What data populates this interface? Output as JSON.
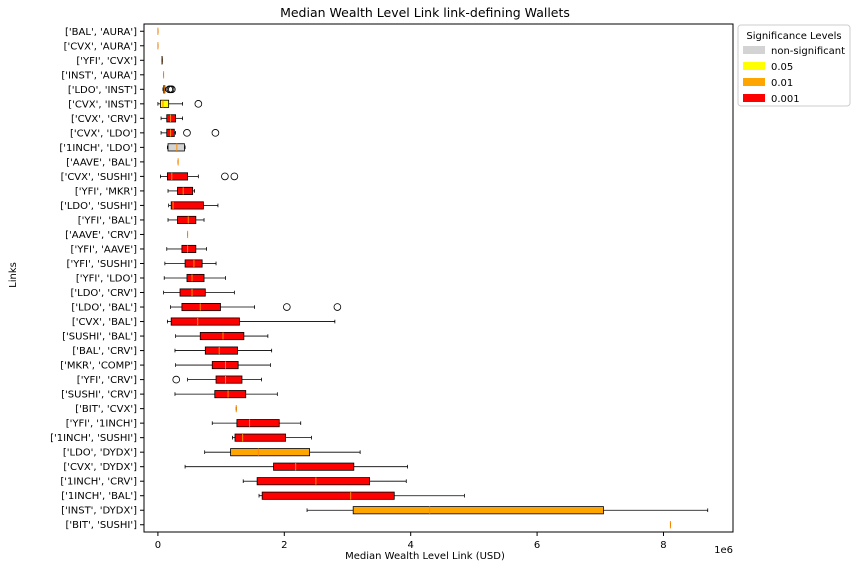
{
  "chart_data": {
    "type": "boxplot",
    "title": "Median Wealth Level Link link-defining Wallets",
    "xlabel": "Median Wealth Level Link (USD)",
    "ylabel": "Links",
    "x_scale_label": "1e6",
    "x_ticks": [
      0,
      2,
      4,
      6,
      8
    ],
    "xlim": [
      -0.22,
      9.1
    ],
    "legend": {
      "title": "Significance Levels",
      "position": "outside-top-right",
      "entries": [
        {
          "label": "non-significant",
          "color": "#d3d3d3"
        },
        {
          "label": "0.05",
          "color": "#ffff00"
        },
        {
          "label": "0.01",
          "color": "#ffa500"
        },
        {
          "label": "0.001",
          "color": "#ff0000"
        }
      ]
    },
    "boxes": [
      {
        "label": "['BAL', 'AURA']",
        "level": "0.01",
        "min": 0.0,
        "q1": 0.0,
        "median": 0.0,
        "q3": 0.0,
        "max": 0.0,
        "outliers": []
      },
      {
        "label": "['CVX', 'AURA']",
        "level": "0.01",
        "min": 0.0,
        "q1": 0.0,
        "median": 0.0,
        "q3": 0.0,
        "max": 0.0,
        "outliers": []
      },
      {
        "label": "['YFI', 'CVX']",
        "level": "0.01",
        "min": 0.06,
        "q1": 0.06,
        "median": 0.06,
        "q3": 0.07,
        "max": 0.07,
        "outliers": []
      },
      {
        "label": "['INST', 'AURA']",
        "level": "0.01",
        "min": 0.09,
        "q1": 0.09,
        "median": 0.09,
        "q3": 0.09,
        "max": 0.09,
        "outliers": []
      },
      {
        "label": "['LDO', 'INST']",
        "level": "0.01",
        "min": 0.08,
        "q1": 0.09,
        "median": 0.1,
        "q3": 0.11,
        "max": 0.12,
        "outliers": [
          0.18,
          0.2,
          0.22
        ]
      },
      {
        "label": "['CVX', 'INST']",
        "level": "0.05",
        "min": 0.0,
        "q1": 0.04,
        "median": 0.08,
        "q3": 0.17,
        "max": 0.39,
        "outliers": [
          0.64
        ]
      },
      {
        "label": "['CVX', 'CRV']",
        "level": "0.001",
        "min": 0.05,
        "q1": 0.14,
        "median": 0.2,
        "q3": 0.28,
        "max": 0.39,
        "outliers": []
      },
      {
        "label": "['CVX', 'LDO']",
        "level": "0.001",
        "min": 0.05,
        "q1": 0.14,
        "median": 0.2,
        "q3": 0.26,
        "max": 0.28,
        "outliers": [
          0.46,
          0.91
        ]
      },
      {
        "label": "['1INCH', 'LDO']",
        "level": "non-significant",
        "min": 0.15,
        "q1": 0.16,
        "median": 0.3,
        "q3": 0.42,
        "max": 0.43,
        "outliers": []
      },
      {
        "label": "['AAVE', 'BAL']",
        "level": "0.01",
        "min": 0.32,
        "q1": 0.32,
        "median": 0.32,
        "q3": 0.32,
        "max": 0.32,
        "outliers": []
      },
      {
        "label": "['CVX', 'SUSHI']",
        "level": "0.001",
        "min": 0.04,
        "q1": 0.15,
        "median": 0.22,
        "q3": 0.47,
        "max": 0.64,
        "outliers": [
          1.06,
          1.21
        ]
      },
      {
        "label": "['YFI', 'MKR']",
        "level": "0.001",
        "min": 0.16,
        "q1": 0.31,
        "median": 0.4,
        "q3": 0.55,
        "max": 0.58,
        "outliers": []
      },
      {
        "label": "['LDO', 'SUSHI']",
        "level": "0.001",
        "min": 0.17,
        "q1": 0.21,
        "median": 0.24,
        "q3": 0.72,
        "max": 0.95,
        "outliers": []
      },
      {
        "label": "['YFI', 'BAL']",
        "level": "0.001",
        "min": 0.16,
        "q1": 0.31,
        "median": 0.48,
        "q3": 0.6,
        "max": 0.73,
        "outliers": []
      },
      {
        "label": "['AAVE', 'CRV']",
        "level": "0.01",
        "min": 0.47,
        "q1": 0.47,
        "median": 0.47,
        "q3": 0.47,
        "max": 0.47,
        "outliers": []
      },
      {
        "label": "['YFI', 'AAVE']",
        "level": "0.001",
        "min": 0.14,
        "q1": 0.38,
        "median": 0.47,
        "q3": 0.6,
        "max": 0.77,
        "outliers": []
      },
      {
        "label": "['YFI', 'SUSHI']",
        "level": "0.001",
        "min": 0.11,
        "q1": 0.43,
        "median": 0.57,
        "q3": 0.7,
        "max": 0.92,
        "outliers": []
      },
      {
        "label": "['YFI', 'LDO']",
        "level": "0.001",
        "min": 0.1,
        "q1": 0.46,
        "median": 0.54,
        "q3": 0.73,
        "max": 1.07,
        "outliers": []
      },
      {
        "label": "['LDO', 'CRV']",
        "level": "0.001",
        "min": 0.09,
        "q1": 0.35,
        "median": 0.54,
        "q3": 0.75,
        "max": 1.21,
        "outliers": []
      },
      {
        "label": "['LDO', 'BAL']",
        "level": "0.001",
        "min": 0.2,
        "q1": 0.38,
        "median": 0.67,
        "q3": 0.99,
        "max": 1.53,
        "outliers": [
          2.04,
          2.84
        ]
      },
      {
        "label": "['CVX', 'BAL']",
        "level": "0.001",
        "min": 0.15,
        "q1": 0.21,
        "median": 0.63,
        "q3": 1.29,
        "max": 2.8,
        "outliers": []
      },
      {
        "label": "['SUSHI', 'BAL']",
        "level": "0.001",
        "min": 0.28,
        "q1": 0.67,
        "median": 1.03,
        "q3": 1.36,
        "max": 1.74,
        "outliers": []
      },
      {
        "label": "['BAL', 'CRV']",
        "level": "0.001",
        "min": 0.27,
        "q1": 0.75,
        "median": 0.97,
        "q3": 1.26,
        "max": 1.8,
        "outliers": []
      },
      {
        "label": "['MKR', 'COMP']",
        "level": "0.001",
        "min": 0.28,
        "q1": 0.86,
        "median": 1.07,
        "q3": 1.27,
        "max": 1.78,
        "outliers": []
      },
      {
        "label": "['YFI', 'CRV']",
        "level": "0.001",
        "min": 0.47,
        "q1": 0.92,
        "median": 1.07,
        "q3": 1.33,
        "max": 1.64,
        "outliers": [
          0.29
        ]
      },
      {
        "label": "['SUSHI', 'CRV']",
        "level": "0.001",
        "min": 0.27,
        "q1": 0.9,
        "median": 1.11,
        "q3": 1.39,
        "max": 1.89,
        "outliers": []
      },
      {
        "label": "['BIT', 'CVX']",
        "level": "0.01",
        "min": 1.24,
        "q1": 1.24,
        "median": 1.24,
        "q3": 1.24,
        "max": 1.24,
        "outliers": []
      },
      {
        "label": "['YFI', '1INCH']",
        "level": "0.001",
        "min": 0.86,
        "q1": 1.25,
        "median": 1.45,
        "q3": 1.92,
        "max": 2.26,
        "outliers": []
      },
      {
        "label": "['1INCH', 'SUSHI']",
        "level": "0.001",
        "min": 1.18,
        "q1": 1.22,
        "median": 1.34,
        "q3": 2.02,
        "max": 2.43,
        "outliers": []
      },
      {
        "label": "['LDO', 'DYDX']",
        "level": "0.01",
        "min": 0.74,
        "q1": 1.15,
        "median": 1.59,
        "q3": 2.4,
        "max": 3.2,
        "outliers": []
      },
      {
        "label": "['CVX', 'DYDX']",
        "level": "0.001",
        "min": 0.43,
        "q1": 1.83,
        "median": 2.18,
        "q3": 3.1,
        "max": 3.95,
        "outliers": []
      },
      {
        "label": "['1INCH', 'CRV']",
        "level": "0.001",
        "min": 1.35,
        "q1": 1.57,
        "median": 2.5,
        "q3": 3.35,
        "max": 3.93,
        "outliers": []
      },
      {
        "label": "['1INCH', 'BAL']",
        "level": "0.001",
        "min": 1.6,
        "q1": 1.65,
        "median": 3.05,
        "q3": 3.74,
        "max": 4.85,
        "outliers": []
      },
      {
        "label": "['INST', 'DYDX']",
        "level": "0.01",
        "min": 2.36,
        "q1": 3.09,
        "median": 4.3,
        "q3": 7.05,
        "max": 8.7,
        "outliers": []
      },
      {
        "label": "['BIT', 'SUSHI']",
        "level": "0.01",
        "min": 8.11,
        "q1": 8.11,
        "median": 8.11,
        "q3": 8.11,
        "max": 8.11,
        "outliers": []
      }
    ]
  }
}
